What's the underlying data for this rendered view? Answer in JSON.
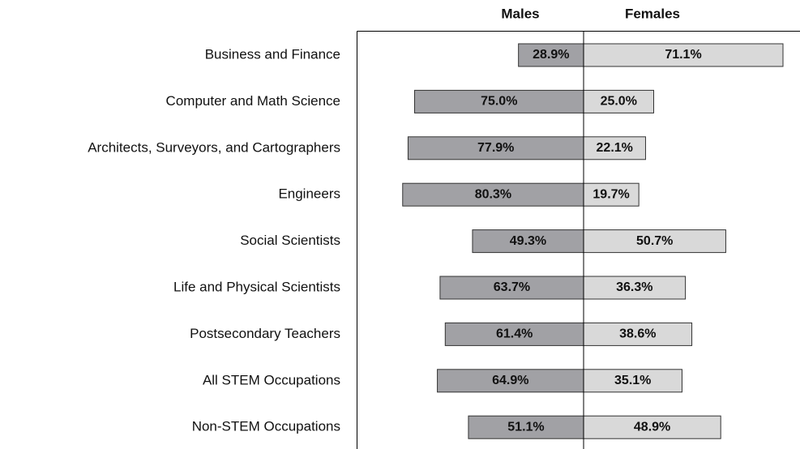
{
  "chart_data": {
    "type": "butterfly-bar",
    "categories": [
      "Business and Finance",
      "Computer and Math Science",
      "Architects, Surveyors, and Cartographers",
      "Engineers",
      "Social Scientists",
      "Life and Physical Scientists",
      "Postsecondary Teachers",
      "All STEM Occupations",
      "Non-STEM Occupations"
    ],
    "series": [
      {
        "name": "Males",
        "color": "#a1a1a5",
        "values": [
          28.9,
          75.0,
          77.9,
          80.3,
          49.3,
          63.7,
          61.4,
          64.9,
          51.1
        ],
        "value_labels": [
          "28.9%",
          "75.0%",
          "77.9%",
          "80.3%",
          "49.3%",
          "63.7%",
          "61.4%",
          "64.9%",
          "51.1%"
        ]
      },
      {
        "name": "Females",
        "color": "#d9d9d9",
        "values": [
          71.1,
          25.0,
          22.1,
          19.7,
          50.7,
          36.3,
          38.6,
          35.1,
          48.9
        ],
        "value_labels": [
          "71.1%",
          "25.0%",
          "22.1%",
          "19.7%",
          "50.7%",
          "36.3%",
          "38.6%",
          "35.1%",
          "48.9%"
        ]
      }
    ]
  }
}
